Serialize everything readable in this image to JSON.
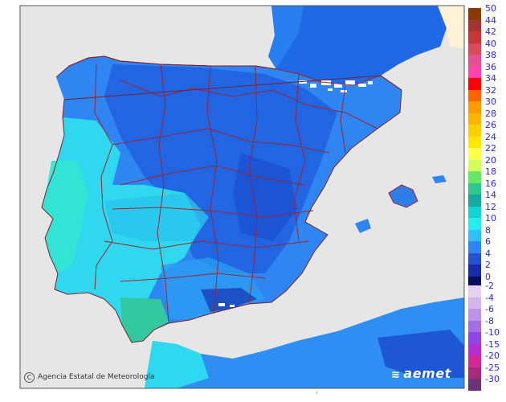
{
  "credit": {
    "text": "Agencia Estatal de Meteorología",
    "icon": "copyright-icon"
  },
  "logo": {
    "text": "aemet",
    "icon": "aemet-logo-icon"
  },
  "footer_mark": "ª",
  "colors": {
    "sea": "#e6e6e6",
    "background": "#ffffff",
    "land_deep": "#1a55d6",
    "land_mid": "#2f80f0",
    "land_light": "#2faef5",
    "land_cyan": "#2fe4e4",
    "land_green": "#38cfa8",
    "borders": "#a2222e",
    "snow": "#ffffff",
    "frame": "#555555"
  },
  "legend": {
    "positive": [
      {
        "label": "50",
        "color": "#8b3a00"
      },
      {
        "label": "44",
        "color": "#a83232"
      },
      {
        "label": "42",
        "color": "#c43838"
      },
      {
        "label": "40",
        "color": "#d94a5a"
      },
      {
        "label": "38",
        "color": "#e45090"
      },
      {
        "label": "36",
        "color": "#ff44aa"
      },
      {
        "label": "34",
        "color": "#ff0000"
      },
      {
        "label": "32",
        "color": "#ff6400"
      },
      {
        "label": "30",
        "color": "#ff9a00"
      },
      {
        "label": "28",
        "color": "#ffb400"
      },
      {
        "label": "26",
        "color": "#ffd000"
      },
      {
        "label": "24",
        "color": "#ffe800"
      },
      {
        "label": "22",
        "color": "#ffff50"
      },
      {
        "label": "20",
        "color": "#d2ff5a"
      },
      {
        "label": "18",
        "color": "#64e864"
      },
      {
        "label": "16",
        "color": "#2ec88c"
      },
      {
        "label": "14",
        "color": "#18a8a0"
      },
      {
        "label": "12",
        "color": "#14d2d2"
      },
      {
        "label": "10",
        "color": "#28ebf0"
      },
      {
        "label": "8",
        "color": "#2ec0f8"
      },
      {
        "label": "6",
        "color": "#2e86f5"
      },
      {
        "label": "4",
        "color": "#2452d2"
      },
      {
        "label": "2",
        "color": "#1a2da8"
      },
      {
        "label": "0",
        "color": "#0a1060"
      }
    ],
    "negative": [
      {
        "label": "-2",
        "color": "#e6d2f0"
      },
      {
        "label": "-4",
        "color": "#d2b4ee"
      },
      {
        "label": "-6",
        "color": "#be94ea"
      },
      {
        "label": "-8",
        "color": "#a66ee6"
      },
      {
        "label": "-10",
        "color": "#9046e6"
      },
      {
        "label": "-15",
        "color": "#b22ed2"
      },
      {
        "label": "-20",
        "color": "#d22896"
      },
      {
        "label": "-25",
        "color": "#a8287a"
      },
      {
        "label": "-30",
        "color": "#6e3278"
      }
    ]
  }
}
